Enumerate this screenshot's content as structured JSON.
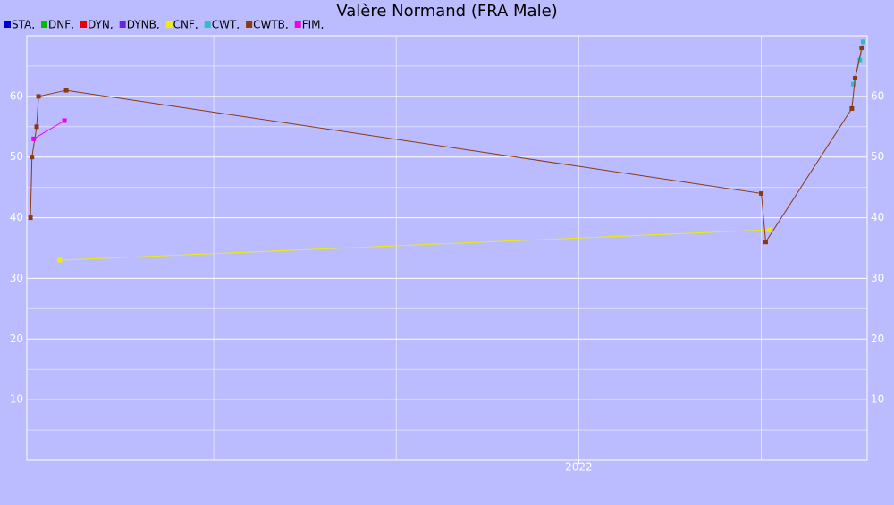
{
  "chart_data": {
    "type": "line",
    "title": "Valère Normand (FRA Male)",
    "series": [
      {
        "name": "STA,",
        "color": "#0000cc",
        "x": [],
        "values": []
      },
      {
        "name": "DNF,",
        "color": "#00bb00",
        "x": [],
        "values": []
      },
      {
        "name": "DYN,",
        "color": "#ee0000",
        "x": [],
        "values": []
      },
      {
        "name": "DYNB,",
        "color": "#6622ee",
        "x": [],
        "values": []
      },
      {
        "name": "CNF,",
        "color": "#eeee00",
        "x": [
          2020.578,
          2022.522
        ],
        "values": [
          33,
          38
        ]
      },
      {
        "name": "CWT,",
        "color": "#33bbcc",
        "x": [
          2022.752,
          2022.77,
          2022.779
        ],
        "values": [
          62,
          66,
          69
        ]
      },
      {
        "name": "CWTB,",
        "color": "#8b3a0f",
        "x": [
          2020.498,
          2020.502,
          2020.515,
          2020.52,
          2020.596,
          2022.5,
          2022.512,
          2022.748,
          2022.757,
          2022.775
        ],
        "values": [
          40,
          50,
          55,
          60,
          61,
          44,
          36,
          58,
          63,
          68
        ]
      },
      {
        "name": "FIM,",
        "color": "#ee00ee",
        "x": [
          2020.507,
          2020.591
        ],
        "values": [
          53,
          56
        ]
      }
    ],
    "xlim": [
      2020.488,
      2022.79
    ],
    "xticks": [
      {
        "value": 2022,
        "label": "2022"
      }
    ],
    "x_grid": [
      2021,
      2021.5,
      2022,
      2022.5
    ],
    "ylim": [
      0,
      70
    ],
    "yticks": [
      10,
      20,
      30,
      40,
      50,
      60
    ],
    "y_minor_grid": [
      5,
      15,
      25,
      35,
      45,
      55,
      65
    ],
    "grid": true
  }
}
